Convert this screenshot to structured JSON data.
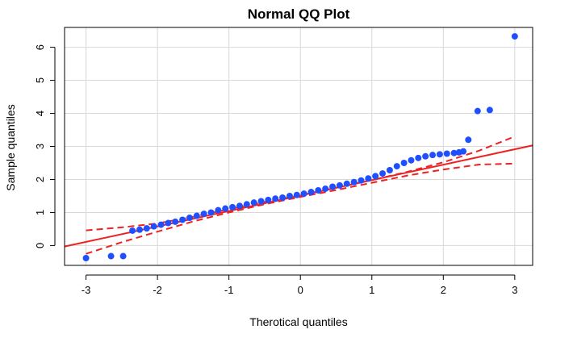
{
  "chart_data": {
    "type": "scatter",
    "title": "Normal QQ Plot",
    "xlabel": "Therotical quantiles",
    "ylabel": "Sample quantiles",
    "xlim": [
      -3.3,
      3.25
    ],
    "ylim": [
      -0.6,
      6.6
    ],
    "xticks": [
      -3,
      -2,
      -1,
      0,
      1,
      2,
      3
    ],
    "yticks": [
      0,
      1,
      2,
      3,
      4,
      5,
      6
    ],
    "grid": true,
    "colors": {
      "points": "#1f4fff",
      "reference_line": "#ee2222",
      "envelope": "#ee2222",
      "grid": "#d8d8d8"
    },
    "series": [
      {
        "type": "scatter",
        "x": [
          -3.0,
          -2.65,
          -2.48,
          -2.35,
          -2.25,
          -2.15,
          -2.05,
          -1.95,
          -1.85,
          -1.75,
          -1.65,
          -1.55,
          -1.45,
          -1.35,
          -1.25,
          -1.15,
          -1.05,
          -0.95,
          -0.85,
          -0.75,
          -0.65,
          -0.55,
          -0.45,
          -0.35,
          -0.25,
          -0.15,
          -0.05,
          0.05,
          0.15,
          0.25,
          0.35,
          0.45,
          0.55,
          0.65,
          0.75,
          0.85,
          0.95,
          1.05,
          1.15,
          1.25,
          1.35,
          1.45,
          1.55,
          1.65,
          1.75,
          1.85,
          1.95,
          2.05,
          2.15,
          2.22,
          2.28,
          2.35,
          2.48,
          2.65,
          3.0
        ],
        "y": [
          -0.38,
          -0.32,
          -0.32,
          0.45,
          0.48,
          0.52,
          0.58,
          0.63,
          0.68,
          0.72,
          0.78,
          0.84,
          0.9,
          0.96,
          1.0,
          1.07,
          1.12,
          1.16,
          1.2,
          1.25,
          1.3,
          1.34,
          1.38,
          1.42,
          1.45,
          1.5,
          1.53,
          1.57,
          1.62,
          1.67,
          1.72,
          1.78,
          1.82,
          1.87,
          1.92,
          1.97,
          2.03,
          2.1,
          2.18,
          2.28,
          2.4,
          2.5,
          2.58,
          2.65,
          2.7,
          2.74,
          2.76,
          2.78,
          2.8,
          2.82,
          2.85,
          3.2,
          4.07,
          4.1,
          6.33
        ]
      },
      {
        "type": "line",
        "role": "reference",
        "x": [
          -3.3,
          3.25
        ],
        "y": [
          -0.03,
          3.03
        ]
      },
      {
        "type": "line",
        "role": "upper-envelope",
        "x": [
          -3.0,
          -2.5,
          -2.0,
          -1.5,
          -1.0,
          -0.5,
          0.0,
          0.5,
          1.0,
          1.5,
          2.0,
          2.5,
          3.0
        ],
        "y": [
          0.46,
          0.55,
          0.67,
          0.87,
          1.1,
          1.32,
          1.52,
          1.75,
          1.98,
          2.23,
          2.52,
          2.87,
          3.3
        ]
      },
      {
        "type": "line",
        "role": "lower-envelope",
        "x": [
          -3.0,
          -2.5,
          -2.0,
          -1.5,
          -1.0,
          -0.5,
          0.0,
          0.5,
          1.0,
          1.5,
          2.0,
          2.5,
          3.0
        ],
        "y": [
          -0.25,
          0.1,
          0.42,
          0.73,
          1.0,
          1.25,
          1.47,
          1.68,
          1.9,
          2.12,
          2.3,
          2.45,
          2.48
        ]
      }
    ]
  }
}
